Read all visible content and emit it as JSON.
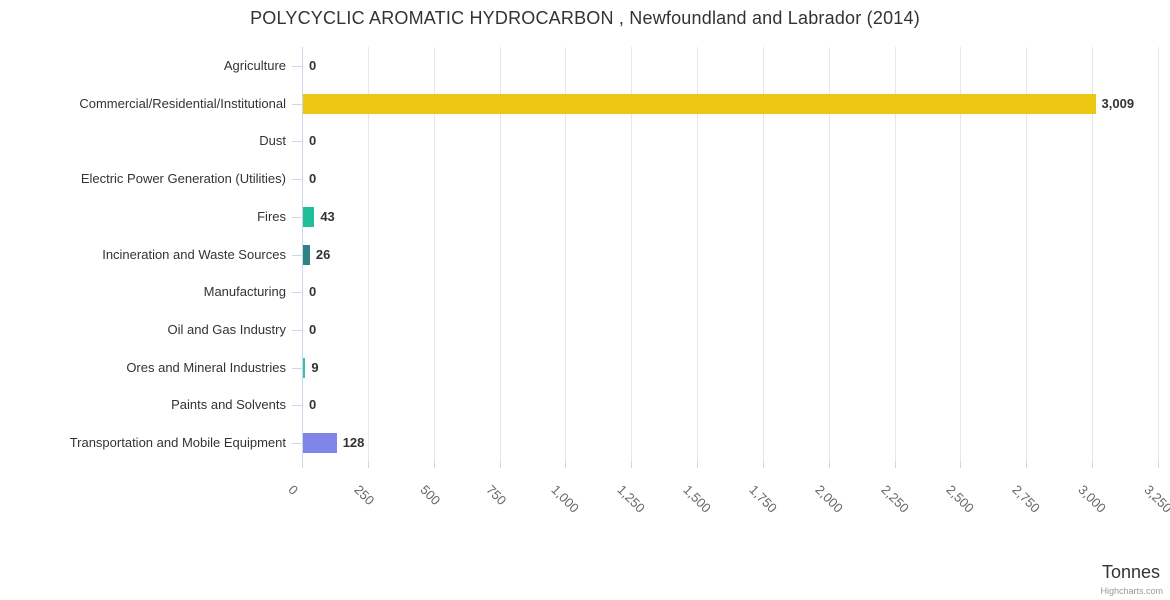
{
  "title": "POLYCYCLIC AROMATIC HYDROCARBON , Newfoundland and Labrador (2014)",
  "credits": "Highcharts.com",
  "chart_data": {
    "type": "bar",
    "orientation": "horizontal",
    "title": "POLYCYCLIC AROMATIC HYDROCARBON , Newfoundland and Labrador (2014)",
    "categories": [
      "Agriculture",
      "Commercial/Residential/Institutional",
      "Dust",
      "Electric Power Generation (Utilities)",
      "Fires",
      "Incineration and Waste Sources",
      "Manufacturing",
      "Oil and Gas Industry",
      "Ores and Mineral Industries",
      "Paints and Solvents",
      "Transportation and Mobile Equipment"
    ],
    "values": [
      0,
      3009,
      0,
      0,
      43,
      26,
      0,
      0,
      9,
      0,
      128
    ],
    "value_labels": [
      "0",
      "3,009",
      "0",
      "0",
      "43",
      "26",
      "0",
      "0",
      "9",
      "0",
      "128"
    ],
    "bar_colors": [
      null,
      "#edc713",
      null,
      null,
      "#21be9b",
      "#2f8387",
      null,
      null,
      "#35c2b3",
      null,
      "#8085e9"
    ],
    "xlabel": "Tonnes",
    "xlim": [
      0,
      3250
    ],
    "x_ticks": [
      0,
      250,
      500,
      750,
      1000,
      1250,
      1500,
      1750,
      2000,
      2250,
      2500,
      2750,
      3000,
      3250
    ],
    "x_tick_labels": [
      "0",
      "250",
      "500",
      "750",
      "1,000",
      "1,250",
      "1,500",
      "1,750",
      "2,000",
      "2,250",
      "2,500",
      "2,750",
      "3,000",
      "3,250"
    ],
    "grid": true,
    "legend": false,
    "grid_color": "#e6e6e6",
    "axis_line_color": "#ccd6eb"
  }
}
